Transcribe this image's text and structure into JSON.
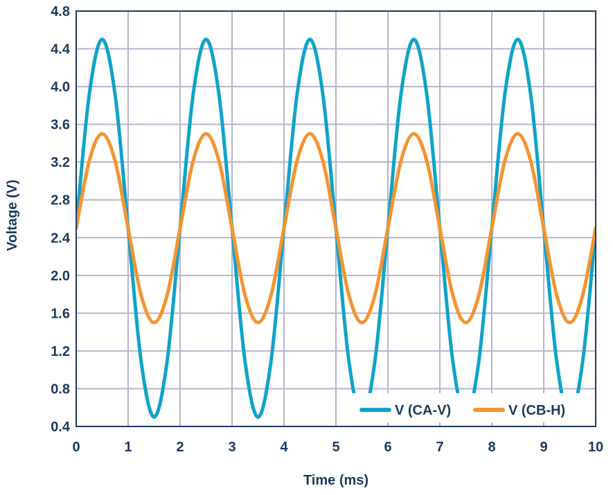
{
  "chart_data": {
    "type": "line",
    "xlabel": "Time (ms)",
    "ylabel": "Voltage (V)",
    "xlim": [
      0,
      10
    ],
    "ylim": [
      0.4,
      4.8
    ],
    "x_ticks": [
      0,
      1,
      2,
      3,
      4,
      5,
      6,
      7,
      8,
      9,
      10
    ],
    "y_ticks": [
      "0.4",
      "0.8",
      "1.2",
      "1.6",
      "2.0",
      "2.4",
      "2.8",
      "3.2",
      "3.6",
      "4.0",
      "4.4",
      "4.8"
    ],
    "grid": true,
    "legend_position": "bottom-right",
    "series": [
      {
        "name": "V (CA-V)",
        "color": "#10a3c8",
        "x": [
          0,
          0.25,
          0.5,
          0.75,
          1,
          1.25,
          1.5,
          1.75,
          2,
          2.25,
          2.5,
          2.75,
          3,
          3.25,
          3.5,
          3.75,
          4,
          4.25,
          4.5,
          4.75,
          5,
          5.25,
          5.5,
          5.75,
          6,
          6.25,
          6.5,
          6.75,
          7,
          7.25,
          7.5,
          7.75,
          8,
          8.25,
          8.5,
          8.75,
          9,
          9.25,
          9.5,
          9.75,
          10
        ],
        "y": [
          2.5,
          3.91,
          4.5,
          3.91,
          2.5,
          1.09,
          0.5,
          1.09,
          2.5,
          3.91,
          4.5,
          3.91,
          2.5,
          1.09,
          0.5,
          1.09,
          2.5,
          3.91,
          4.5,
          3.91,
          2.5,
          1.09,
          0.5,
          1.09,
          2.5,
          3.91,
          4.5,
          3.91,
          2.5,
          1.09,
          0.5,
          1.09,
          2.5,
          3.91,
          4.5,
          3.91,
          2.5,
          1.09,
          0.5,
          1.09,
          2.5
        ]
      },
      {
        "name": "V (CB-H)",
        "color": "#f39432",
        "x": [
          0,
          0.25,
          0.5,
          0.75,
          1,
          1.25,
          1.5,
          1.75,
          2,
          2.25,
          2.5,
          2.75,
          3,
          3.25,
          3.5,
          3.75,
          4,
          4.25,
          4.5,
          4.75,
          5,
          5.25,
          5.5,
          5.75,
          6,
          6.25,
          6.5,
          6.75,
          7,
          7.25,
          7.5,
          7.75,
          8,
          8.25,
          8.5,
          8.75,
          9,
          9.25,
          9.5,
          9.75,
          10
        ],
        "y": [
          2.5,
          3.21,
          3.5,
          3.21,
          2.5,
          1.79,
          1.5,
          1.79,
          2.5,
          3.21,
          3.5,
          3.21,
          2.5,
          1.79,
          1.5,
          1.79,
          2.5,
          3.21,
          3.5,
          3.21,
          2.5,
          1.79,
          1.5,
          1.79,
          2.5,
          3.21,
          3.5,
          3.21,
          2.5,
          1.79,
          1.5,
          1.79,
          2.5,
          3.21,
          3.5,
          3.21,
          2.5,
          1.79,
          1.5,
          1.79,
          2.5
        ]
      }
    ]
  }
}
